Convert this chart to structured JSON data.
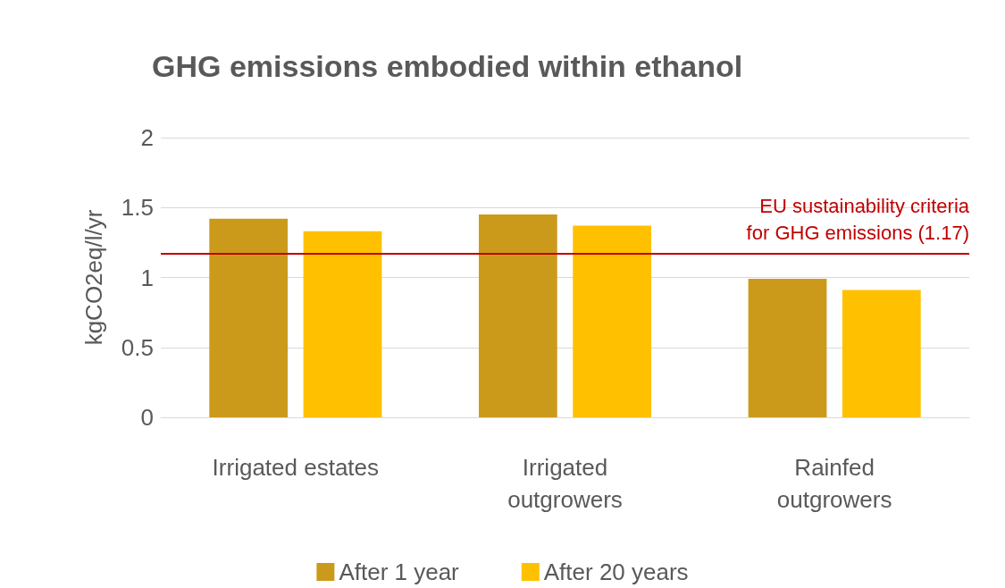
{
  "chart_data": {
    "type": "bar",
    "title": "GHG emissions embodied within ethanol",
    "ylabel": "kgCO2eq/l/yr",
    "categories": [
      "Irrigated estates",
      "Irrigated\noutgrowers",
      "Rainfed\noutgrowers"
    ],
    "series": [
      {
        "name": "After 1 year",
        "color": "#cc9a1a",
        "values": [
          1.42,
          1.45,
          0.99
        ]
      },
      {
        "name": "After 20 years",
        "color": "#ffc000",
        "values": [
          1.33,
          1.37,
          0.91
        ]
      }
    ],
    "ylim": [
      0,
      2
    ],
    "yticks": [
      0,
      0.5,
      1,
      1.5,
      2
    ],
    "grid": "y",
    "legend": "bottom",
    "ref_lines": [
      {
        "axis": "y",
        "value": 1.17,
        "label": "EU sustainability criteria\nfor GHG emissions (1.17)",
        "color": "#c00000"
      }
    ]
  }
}
